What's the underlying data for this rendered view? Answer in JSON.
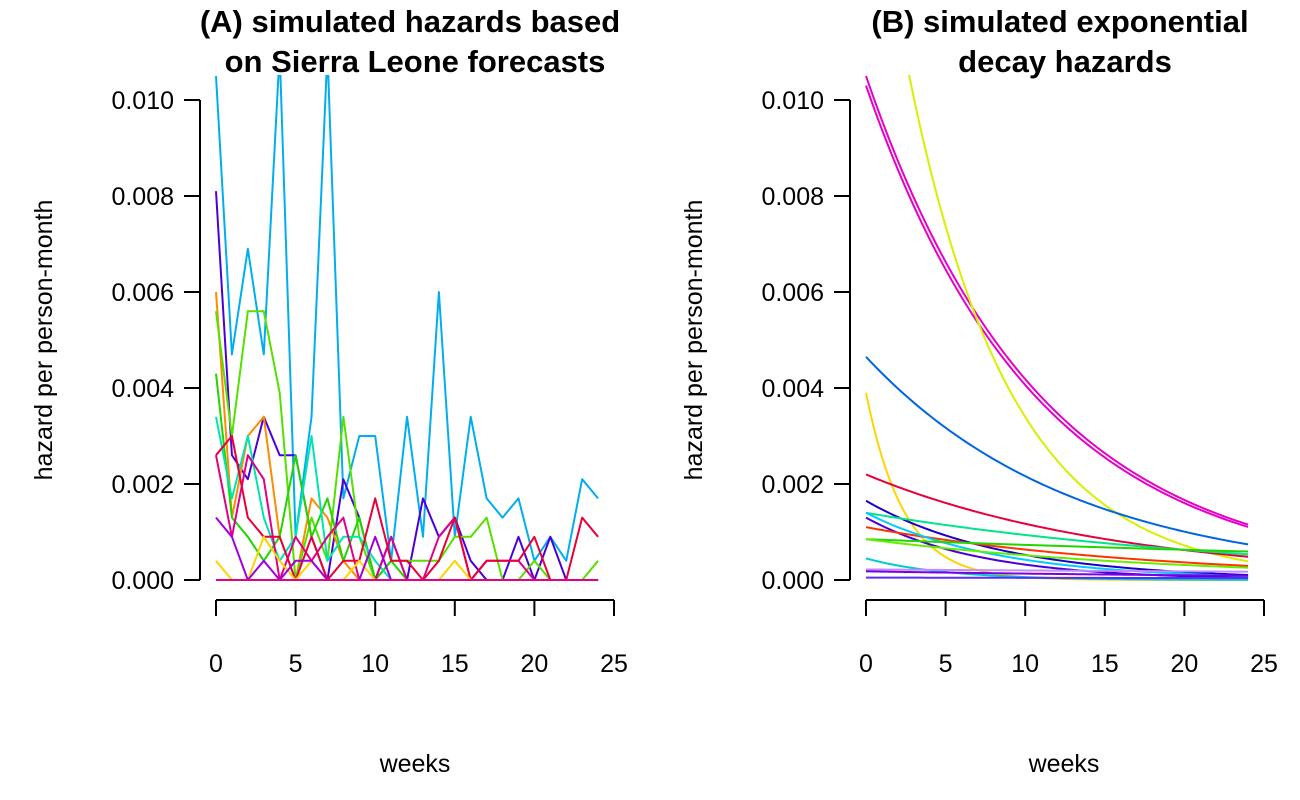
{
  "chart_data": [
    {
      "type": "line",
      "title_lines": [
        "(A) simulated hazards based",
        "on Sierra Leone forecasts"
      ],
      "xlabel": "weeks",
      "ylabel": "hazard per person-month",
      "xlim": [
        0,
        25
      ],
      "ylim": [
        0,
        0.01
      ],
      "xticks": [
        "0",
        "5",
        "10",
        "15",
        "20",
        "25"
      ],
      "yticks": [
        "0.000",
        "0.002",
        "0.004",
        "0.006",
        "0.008",
        "0.010"
      ],
      "grid": false,
      "series": [
        {
          "color": "#00AEEF",
          "x": [
            0,
            1,
            2,
            3,
            4,
            5,
            6,
            7,
            8,
            9,
            10,
            11,
            12,
            13,
            14,
            15,
            16,
            17,
            18,
            19,
            20,
            21,
            22,
            23,
            24
          ],
          "y": [
            0.0105,
            0.0047,
            0.0069,
            0.0047,
            0.011,
            0.0009,
            0.0034,
            0.011,
            0.0017,
            0.003,
            0.003,
            0.0004,
            0.0034,
            0.0009,
            0.006,
            0.0009,
            0.0034,
            0.0017,
            0.0013,
            0.0017,
            0.0004,
            0.0009,
            0.0004,
            0.0021,
            0.0017
          ]
        },
        {
          "color": "#4B00D9",
          "x": [
            0,
            1,
            2,
            3,
            4,
            5,
            6,
            7,
            8,
            9,
            10,
            11,
            12,
            13,
            14,
            15,
            16,
            17,
            18,
            19,
            20,
            21,
            22,
            23,
            24
          ],
          "y": [
            0.0081,
            0.0026,
            0.0021,
            0.0034,
            0.0026,
            0.0026,
            0.0009,
            0.0,
            0.0021,
            0.0013,
            0.0,
            0.0009,
            0.0,
            0.0017,
            0.0009,
            0.0013,
            0.0004,
            0.0,
            0.0,
            0.0009,
            0.0,
            0.0009,
            0.0,
            0.0,
            0.0
          ]
        },
        {
          "color": "#FF8C00",
          "x": [
            0,
            1,
            2,
            3,
            4,
            5,
            6,
            7,
            8,
            9,
            10,
            11,
            12,
            13,
            14,
            15,
            16,
            17,
            18,
            19,
            20,
            21,
            22,
            23,
            24
          ],
          "y": [
            0.006,
            0.0013,
            0.003,
            0.0034,
            0.0009,
            0.0,
            0.0017,
            0.0013,
            0.0004,
            0.0,
            0.0,
            0.0,
            0.0,
            0.0,
            0.0,
            0.0,
            0.0,
            0.0,
            0.0,
            0.0,
            0.0,
            0.0,
            0.0,
            0.0,
            0.0
          ]
        },
        {
          "color": "#55E000",
          "x": [
            0,
            1,
            2,
            3,
            4,
            5,
            6,
            7,
            8,
            9,
            10,
            11,
            12,
            13,
            14,
            15,
            16,
            17,
            18,
            19,
            20,
            21,
            22,
            23,
            24
          ],
          "y": [
            0.0056,
            0.003,
            0.0056,
            0.0056,
            0.0039,
            0.0,
            0.0013,
            0.0004,
            0.0034,
            0.0009,
            0.0,
            0.0004,
            0.0004,
            0.0004,
            0.0004,
            0.0009,
            0.0009,
            0.0013,
            0.0,
            0.0,
            0.0004,
            0.0,
            0.0,
            0.0,
            0.0004
          ]
        },
        {
          "color": "#22D400",
          "x": [
            0,
            1,
            2,
            3,
            4,
            5,
            6,
            7,
            8,
            9,
            10,
            11,
            12,
            13,
            14,
            15,
            16,
            17,
            18,
            19,
            20,
            21,
            22,
            23,
            24
          ],
          "y": [
            0.0043,
            0.0013,
            0.0009,
            0.0004,
            0.0009,
            0.0026,
            0.0009,
            0.0017,
            0.0004,
            0.0013,
            0.0,
            0.0004,
            0.0,
            0.0,
            0.0,
            0.0,
            0.0,
            0.0,
            0.0,
            0.0,
            0.0,
            0.0,
            0.0,
            0.0,
            0.0
          ]
        },
        {
          "color": "#00E5B0",
          "x": [
            0,
            1,
            2,
            3,
            4,
            5,
            6,
            7,
            8,
            9,
            10,
            11,
            12,
            13,
            14,
            15,
            16,
            17,
            18,
            19,
            20,
            21,
            22,
            23,
            24
          ],
          "y": [
            0.0034,
            0.0017,
            0.003,
            0.0013,
            0.0004,
            0.0009,
            0.003,
            0.0004,
            0.0009,
            0.0009,
            0.0004,
            0.0,
            0.0,
            0.0,
            0.0,
            0.0,
            0.0,
            0.0,
            0.0,
            0.0,
            0.0,
            0.0,
            0.0,
            0.0,
            0.0
          ]
        },
        {
          "color": "#E0008A",
          "x": [
            0,
            1,
            2,
            3,
            4,
            5,
            6,
            7,
            8,
            9,
            10,
            11,
            12,
            13,
            14,
            15,
            16,
            17,
            18,
            19,
            20,
            21,
            22,
            23,
            24
          ],
          "y": [
            0.0026,
            0.0009,
            0.0026,
            0.0021,
            0.0,
            0.0009,
            0.0004,
            0.0009,
            0.0013,
            0.0,
            0.0,
            0.0009,
            0.0,
            0.0,
            0.0009,
            0.0013,
            0.0,
            0.0004,
            0.0004,
            0.0004,
            0.0,
            0.0,
            0.0,
            0.0,
            0.0
          ]
        },
        {
          "color": "#E8003A",
          "x": [
            0,
            1,
            2,
            3,
            4,
            5,
            6,
            7,
            8,
            9,
            10,
            11,
            12,
            13,
            14,
            15,
            16,
            17,
            18,
            19,
            20,
            21,
            22,
            23,
            24
          ],
          "y": [
            0.0026,
            0.003,
            0.0013,
            0.0009,
            0.0009,
            0.0,
            0.0009,
            0.0,
            0.0004,
            0.0004,
            0.0017,
            0.0004,
            0.0004,
            0.0,
            0.0004,
            0.0013,
            0.0,
            0.0004,
            0.0004,
            0.0004,
            0.0009,
            0.0,
            0.0,
            0.0013,
            0.0009
          ]
        },
        {
          "color": "#FFD400",
          "x": [
            0,
            1,
            2,
            3,
            4,
            5,
            6,
            7,
            8,
            9,
            10,
            11,
            12,
            13,
            14,
            15,
            16,
            17,
            18,
            19,
            20,
            21,
            22,
            23,
            24
          ],
          "y": [
            0.0004,
            0.0,
            0.0,
            0.0009,
            0.0004,
            0.0,
            0.0004,
            0.0,
            0.0,
            0.0004,
            0.0,
            0.0,
            0.0,
            0.0,
            0.0,
            0.0004,
            0.0,
            0.0,
            0.0,
            0.0,
            0.0,
            0.0,
            0.0,
            0.0,
            0.0
          ]
        },
        {
          "color": "#A000E0",
          "x": [
            0,
            1,
            2,
            3,
            4,
            5,
            6,
            7,
            8,
            9,
            10,
            11,
            12,
            13,
            14,
            15,
            16,
            17,
            18,
            19,
            20,
            21,
            22,
            23,
            24
          ],
          "y": [
            0.0013,
            0.0009,
            0.0,
            0.0004,
            0.0,
            0.0004,
            0.0004,
            0.0,
            0.0,
            0.0,
            0.0009,
            0.0,
            0.0,
            0.0,
            0.0,
            0.0,
            0.0,
            0.0,
            0.0,
            0.0,
            0.0,
            0.0,
            0.0,
            0.0,
            0.0
          ]
        },
        {
          "color": "#E0008A",
          "x": [
            0,
            24
          ],
          "y": [
            0.0,
            0.0
          ]
        }
      ]
    },
    {
      "type": "line",
      "title_lines": [
        "(B) simulated exponential",
        "decay hazards"
      ],
      "xlabel": "weeks",
      "ylabel": "hazard per person-month",
      "xlim": [
        0,
        25
      ],
      "ylim": [
        0,
        0.01
      ],
      "xticks": [
        "0",
        "5",
        "10",
        "15",
        "20",
        "25"
      ],
      "yticks": [
        "0.000",
        "0.002",
        "0.004",
        "0.006",
        "0.008",
        "0.010"
      ],
      "grid": false,
      "series": [
        {
          "color": "#E600C8",
          "curve": "exp",
          "a": 0.0105,
          "b": 0.092
        },
        {
          "color": "#E600C8",
          "curve": "exp",
          "a": 0.0103,
          "b": 0.093
        },
        {
          "color": "#D8F000",
          "curve": "exp",
          "a": 0.016,
          "b": 0.155
        },
        {
          "color": "#0066E0",
          "curve": "exp",
          "a": 0.00465,
          "b": 0.0765
        },
        {
          "color": "#FFD400",
          "curve": "exp",
          "a": 0.0039,
          "b": 0.42
        },
        {
          "color": "#E8003A",
          "curve": "exp",
          "a": 0.0022,
          "b": 0.063
        },
        {
          "color": "#1A00C8",
          "curve": "exp",
          "a": 0.00165,
          "b": 0.115
        },
        {
          "color": "#4B00D9",
          "curve": "exp",
          "a": 0.0013,
          "b": 0.14
        },
        {
          "color": "#FF3300",
          "curve": "exp",
          "a": 0.0011,
          "b": 0.055
        },
        {
          "color": "#00E58A",
          "curve": "exp",
          "a": 0.0014,
          "b": 0.04
        },
        {
          "color": "#00CCFF",
          "curve": "exp",
          "a": 0.0014,
          "b": 0.12
        },
        {
          "color": "#22D400",
          "curve": "exp",
          "a": 0.00085,
          "b": 0.015
        },
        {
          "color": "#66EE00",
          "curve": "exp",
          "a": 0.00085,
          "b": 0.05
        },
        {
          "color": "#00CCCC",
          "curve": "exp",
          "a": 0.00045,
          "b": 0.2
        },
        {
          "color": "#C08CFF",
          "curve": "exp",
          "a": 0.00022,
          "b": 0.01
        },
        {
          "color": "#7A00E0",
          "curve": "exp",
          "a": 0.00018,
          "b": 0.03
        },
        {
          "color": "#5A2DFF",
          "curve": "exp",
          "a": 5e-05,
          "b": 0.01
        }
      ]
    }
  ]
}
